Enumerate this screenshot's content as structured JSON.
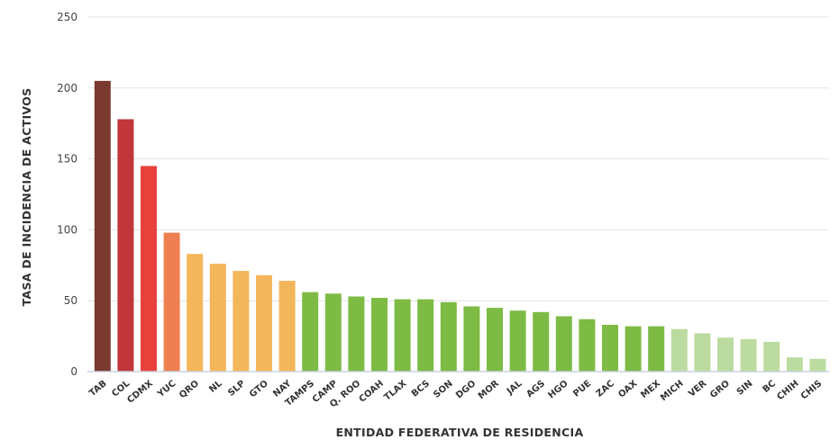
{
  "chart_data": {
    "type": "bar",
    "title": "",
    "xlabel": "ENTIDAD FEDERATIVA DE RESIDENCIA",
    "ylabel": "TASA DE INCIDENCIA DE ACTIVOS",
    "ylim": [
      0,
      250
    ],
    "yticks": [
      0,
      50,
      100,
      150,
      200,
      250
    ],
    "grid": true,
    "legend": "none",
    "categories": [
      "TAB",
      "COL",
      "CDMX",
      "YUC",
      "QRO",
      "NL",
      "SLP",
      "GTO",
      "NAY",
      "TAMPS",
      "CAMP",
      "Q. ROO",
      "COAH",
      "TLAX",
      "BCS",
      "SON",
      "DGO",
      "MOR",
      "JAL",
      "AGS",
      "HGO",
      "PUE",
      "ZAC",
      "OAX",
      "MEX",
      "MICH",
      "VER",
      "GRO",
      "SIN",
      "BC",
      "CHIH",
      "CHIS"
    ],
    "values": [
      205,
      178,
      145,
      98,
      83,
      76,
      71,
      68,
      64,
      56,
      55,
      53,
      52,
      51,
      51,
      49,
      46,
      45,
      43,
      42,
      39,
      37,
      33,
      32,
      32,
      30,
      27,
      24,
      23,
      21,
      10,
      9
    ],
    "colors": [
      "#7a3a30",
      "#c0363a",
      "#e8413c",
      "#ef7f51",
      "#f4b65a",
      "#f4b65a",
      "#f4b65a",
      "#f4b65a",
      "#f4b65a",
      "#7dbb45",
      "#7dbb45",
      "#7dbb45",
      "#7dbb45",
      "#7dbb45",
      "#7dbb45",
      "#7dbb45",
      "#7dbb45",
      "#7dbb45",
      "#7dbb45",
      "#7dbb45",
      "#7dbb45",
      "#7dbb45",
      "#7dbb45",
      "#7dbb45",
      "#7dbb45",
      "#bcdba0",
      "#bcdba0",
      "#bcdba0",
      "#bcdba0",
      "#bcdba0",
      "#bcdba0",
      "#bcdba0"
    ]
  }
}
